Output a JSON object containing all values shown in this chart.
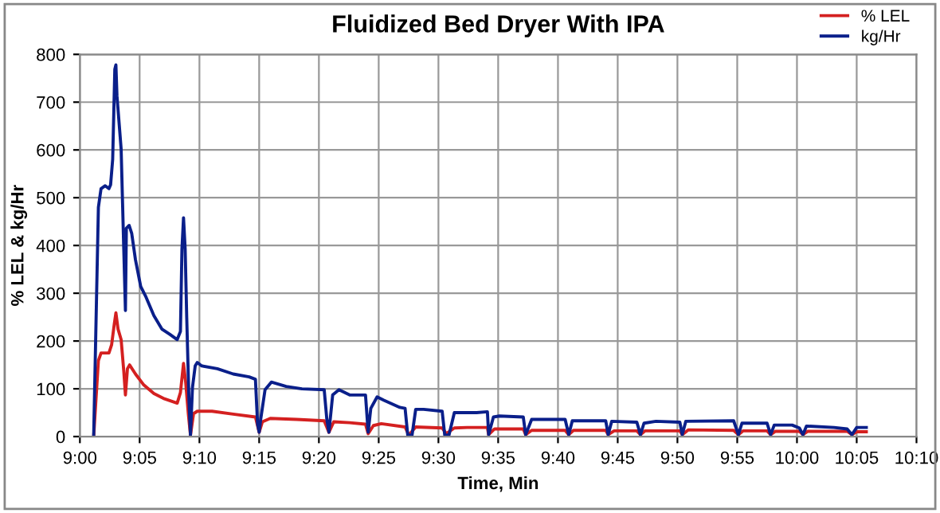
{
  "chart_data": {
    "type": "line",
    "title": "Fluidized Bed Dryer With IPA",
    "xlabel": "Time, Min",
    "ylabel": "% LEL & kg/Hr",
    "xlim": [
      9,
      10.1667
    ],
    "xticks": [
      {
        "value": 9,
        "label": "9:00"
      },
      {
        "value": 9.0833,
        "label": "9:05"
      },
      {
        "value": 9.1667,
        "label": "9:10"
      },
      {
        "value": 9.25,
        "label": "9:15"
      },
      {
        "value": 9.3333,
        "label": "9:20"
      },
      {
        "value": 9.4167,
        "label": "9:25"
      },
      {
        "value": 9.5,
        "label": "9:30"
      },
      {
        "value": 9.5833,
        "label": "9:35"
      },
      {
        "value": 9.6667,
        "label": "9:40"
      },
      {
        "value": 9.75,
        "label": "9:45"
      },
      {
        "value": 9.8333,
        "label": "9:50"
      },
      {
        "value": 9.9167,
        "label": "9:55"
      },
      {
        "value": 10,
        "label": "10:00"
      },
      {
        "value": 10.0833,
        "label": "10:05"
      },
      {
        "value": 10.1667,
        "label": "10:10"
      }
    ],
    "ylim": [
      0,
      800
    ],
    "yticks": [
      0,
      100,
      200,
      300,
      400,
      500,
      600,
      700,
      800
    ],
    "grid": true,
    "legend": "top right",
    "line_style": "solid",
    "marker": "none",
    "series": [
      {
        "name": "% LEL",
        "color": "#d42020",
        "x": [
          9.0192,
          9.0258,
          9.0295,
          9.0405,
          9.0442,
          9.048,
          9.0502,
          9.0532,
          9.0575,
          9.0612,
          9.0635,
          9.0663,
          9.0693,
          9.0775,
          9.0885,
          9.1032,
          9.118,
          9.1357,
          9.1402,
          9.1445,
          9.1475,
          9.1512,
          9.1542,
          9.1585,
          9.1637,
          9.1843,
          9.2138,
          9.2448,
          9.25,
          9.2545,
          9.2655,
          9.3023,
          9.3407,
          9.3473,
          9.354,
          9.3762,
          9.3983,
          9.402,
          9.4093,
          9.4203,
          9.4535,
          9.4587,
          9.4683,
          9.5052,
          9.511,
          9.5222,
          9.54,
          9.5683,
          9.57,
          9.5783,
          9.6183,
          9.6217,
          9.63,
          9.6767,
          9.6817,
          9.6883,
          9.7333,
          9.7367,
          9.745,
          9.7767,
          9.7817,
          9.7883,
          9.8367,
          9.84,
          9.8483,
          9.9117,
          9.9183,
          9.925,
          9.9583,
          9.9633,
          9.97,
          10.0033,
          10.0083,
          10.015,
          10.07,
          10.0767,
          10.0833,
          10.0967
        ],
        "values": [
          0,
          159,
          175,
          175,
          192,
          236,
          259,
          225,
          203,
          137,
          87,
          142,
          150,
          131,
          109,
          90,
          79,
          70,
          92,
          153,
          114,
          48,
          3,
          48,
          53,
          53,
          47,
          41,
          9,
          31,
          38,
          36,
          33,
          9,
          31,
          29,
          26,
          6,
          23,
          27,
          20,
          3,
          20,
          18,
          6,
          18,
          19,
          19,
          4,
          16,
          16,
          4,
          13,
          13,
          4,
          13,
          13,
          4,
          12,
          12,
          4,
          12,
          12,
          4,
          14,
          13,
          4,
          12,
          12,
          4,
          11,
          11,
          4,
          11,
          11,
          4,
          10,
          10
        ]
      },
      {
        "name": "kg/Hr",
        "color": "#0a1f8a",
        "x": [
          9.0192,
          9.0258,
          9.0295,
          9.0353,
          9.0405,
          9.0428,
          9.0457,
          9.0487,
          9.0502,
          9.0517,
          9.0575,
          9.0612,
          9.0635,
          9.0648,
          9.0687,
          9.0723,
          9.0775,
          9.0848,
          9.0922,
          9.1032,
          9.1143,
          9.1253,
          9.1357,
          9.1402,
          9.1423,
          9.1445,
          9.1468,
          9.149,
          9.152,
          9.1542,
          9.157,
          9.1608,
          9.1637,
          9.1697,
          9.1917,
          9.2138,
          9.236,
          9.2448,
          9.2478,
          9.25,
          9.2522,
          9.2582,
          9.267,
          9.2877,
          9.3097,
          9.3407,
          9.3443,
          9.3473,
          9.3525,
          9.3613,
          9.3762,
          9.3983,
          9.402,
          9.4057,
          9.4145,
          9.424,
          9.4462,
          9.4535,
          9.4572,
          9.4632,
          9.4683,
          9.4793,
          9.5052,
          9.5088,
          9.5147,
          9.5222,
          9.5533,
          9.5683,
          9.57,
          9.5767,
          9.585,
          9.6183,
          9.6217,
          9.63,
          9.6767,
          9.6817,
          9.6867,
          9.7333,
          9.7367,
          9.7417,
          9.7767,
          9.7817,
          9.7867,
          9.8033,
          9.8367,
          9.84,
          9.845,
          9.9117,
          9.9183,
          9.9233,
          9.9583,
          9.9633,
          9.9683,
          9.9933,
          10.0033,
          10.0083,
          10.0133,
          10.0517,
          10.07,
          10.0767,
          10.0833,
          10.0967
        ],
        "values": [
          0,
          480,
          519,
          525,
          519,
          527,
          580,
          769,
          778,
          713,
          602,
          392,
          264,
          436,
          442,
          425,
          370,
          314,
          292,
          253,
          225,
          214,
          203,
          220,
          392,
          458,
          392,
          248,
          81,
          3,
          103,
          148,
          155,
          148,
          142,
          131,
          125,
          120,
          26,
          9,
          37,
          98,
          114,
          105,
          100,
          98,
          37,
          9,
          87,
          98,
          87,
          87,
          9,
          59,
          83,
          76,
          61,
          59,
          3,
          3,
          57,
          57,
          53,
          3,
          3,
          50,
          50,
          52,
          4,
          41,
          43,
          41,
          4,
          36,
          36,
          4,
          33,
          33,
          4,
          32,
          30,
          4,
          28,
          32,
          30,
          4,
          32,
          33,
          4,
          28,
          28,
          4,
          24,
          24,
          18,
          4,
          22,
          19,
          16,
          4,
          19,
          19
        ]
      }
    ]
  }
}
